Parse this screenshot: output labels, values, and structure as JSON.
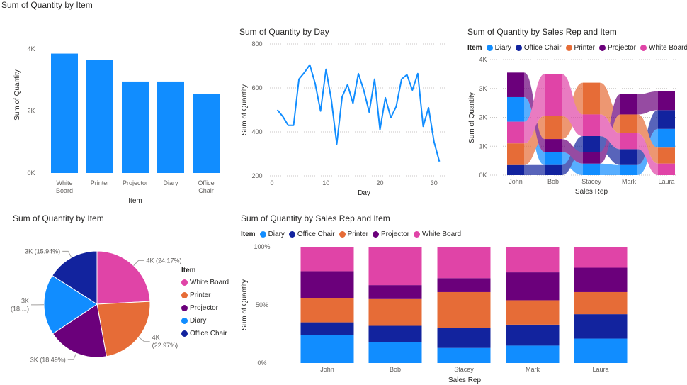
{
  "colors": {
    "diary": "#118dff",
    "office_chair": "#12239e",
    "printer": "#e66c37",
    "projector": "#6b007b",
    "white_board": "#e044a7",
    "axis_text": "#605e5c",
    "grid": "#c8c6c4"
  },
  "chart_data": [
    {
      "id": "bar-by-item",
      "type": "bar",
      "title": "Sum of Quantity by Item",
      "xlabel": "Item",
      "ylabel": "Sum of Quantity",
      "categories": [
        "White Board",
        "Printer",
        "Projector",
        "Diary",
        "Office Chair"
      ],
      "category_lines": [
        [
          "White",
          "Board"
        ],
        [
          "Printer"
        ],
        [
          "Projector"
        ],
        [
          "Diary"
        ],
        [
          "Office",
          "Chair"
        ]
      ],
      "values": [
        3850,
        3650,
        2950,
        2950,
        2550
      ],
      "ylim": [
        0,
        4000
      ],
      "yticks": [
        0,
        2000,
        4000
      ],
      "ytick_labels": [
        "0K",
        "2K",
        "4K"
      ],
      "grid": false
    },
    {
      "id": "line-by-day",
      "type": "line",
      "title": "Sum of Quantity by Day",
      "xlabel": "Day",
      "ylabel": "Sum of Quantity",
      "x": [
        1,
        2,
        3,
        4,
        5,
        6,
        7,
        8,
        9,
        10,
        11,
        12,
        13,
        14,
        15,
        16,
        17,
        18,
        19,
        20,
        21,
        22,
        23,
        24,
        25,
        26,
        27,
        28,
        29,
        30,
        31
      ],
      "values": [
        500,
        470,
        430,
        430,
        640,
        670,
        705,
        620,
        495,
        685,
        545,
        345,
        560,
        615,
        530,
        665,
        590,
        490,
        640,
        410,
        555,
        465,
        515,
        640,
        660,
        590,
        665,
        425,
        510,
        355,
        265
      ],
      "xlim": [
        0,
        32
      ],
      "xticks": [
        0,
        10,
        20,
        30
      ],
      "ylim": [
        200,
        800
      ],
      "yticks": [
        200,
        400,
        600,
        800
      ],
      "grid": true
    },
    {
      "id": "ribbon-by-rep",
      "type": "bar",
      "subtype": "ribbon",
      "title": "Sum of Quantity by Sales Rep and Item",
      "xlabel": "Sales Rep",
      "ylabel": "Sum of Quantity",
      "legend_title": "Item",
      "legend_position": "top-left",
      "categories": [
        "John",
        "Bob",
        "Stacey",
        "Mark",
        "Laura"
      ],
      "ylim": [
        0,
        4000
      ],
      "yticks": [
        0,
        1000,
        2000,
        3000,
        4000
      ],
      "ytick_labels": [
        "0K",
        "1K",
        "2K",
        "3K",
        "4K"
      ],
      "series": [
        {
          "name": "Diary",
          "key": "diary",
          "values": [
            850,
            450,
            400,
            350,
            650
          ]
        },
        {
          "name": "Office Chair",
          "key": "office_chair",
          "values": [
            350,
            350,
            550,
            550,
            650
          ]
        },
        {
          "name": "Printer",
          "key": "printer",
          "values": [
            750,
            800,
            1100,
            650,
            550
          ]
        },
        {
          "name": "Projector",
          "key": "projector",
          "values": [
            850,
            450,
            400,
            700,
            650
          ]
        },
        {
          "name": "White Board",
          "key": "white_board",
          "values": [
            750,
            1450,
            750,
            550,
            400
          ]
        }
      ],
      "grid": true
    },
    {
      "id": "pie-by-item",
      "type": "pie",
      "title": "Sum of Quantity by Item",
      "legend_title": "Item",
      "legend_position": "right",
      "series": [
        {
          "name": "White Board",
          "key": "white_board",
          "value": 24.17,
          "label": "4K (24.17%)"
        },
        {
          "name": "Printer",
          "key": "printer",
          "value": 22.97,
          "label_lines": [
            "4K",
            "(22.97%)"
          ]
        },
        {
          "name": "Projector",
          "key": "projector",
          "value": 18.49,
          "label": "3K (18.49%)"
        },
        {
          "name": "Diary",
          "key": "diary",
          "value": 18.43,
          "label_lines": [
            "3K",
            "(18....)"
          ]
        },
        {
          "name": "Office Chair",
          "key": "office_chair",
          "value": 15.94,
          "label": "3K (15.94%)"
        }
      ]
    },
    {
      "id": "stacked100-by-rep",
      "type": "bar",
      "subtype": "stacked-100",
      "title": "Sum of Quantity by Sales Rep and Item",
      "xlabel": "Sales Rep",
      "ylabel": "Sum of Quantity",
      "legend_title": "Item",
      "legend_position": "top-left",
      "categories": [
        "John",
        "Bob",
        "Stacey",
        "Mark",
        "Laura"
      ],
      "yticks": [
        0,
        50,
        100
      ],
      "ytick_labels": [
        "0%",
        "50%",
        "100%"
      ],
      "series": [
        {
          "name": "Diary",
          "key": "diary",
          "values": [
            24,
            18,
            13,
            15,
            21
          ]
        },
        {
          "name": "Office Chair",
          "key": "office_chair",
          "values": [
            11,
            14,
            17,
            18,
            21
          ]
        },
        {
          "name": "Printer",
          "key": "printer",
          "values": [
            21,
            23,
            31,
            21,
            19
          ]
        },
        {
          "name": "Projector",
          "key": "projector",
          "values": [
            23,
            12,
            12,
            24,
            21
          ]
        },
        {
          "name": "White Board",
          "key": "white_board",
          "values": [
            21,
            33,
            27,
            22,
            18
          ]
        }
      ],
      "grid": false
    }
  ]
}
